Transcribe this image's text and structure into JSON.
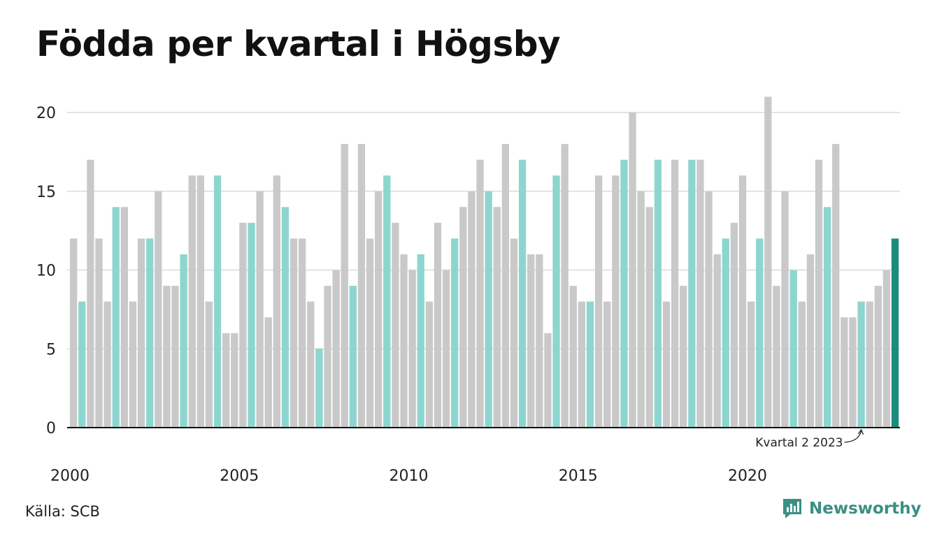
{
  "title": "Födda per kvartal i Högsby",
  "source": "Källa: SCB",
  "brand": {
    "name": "Newsworthy",
    "icon": "newsworthy-logo-icon"
  },
  "colors": {
    "grey": "#c9c9c9",
    "q2": "#8dd6cf",
    "highlight": "#1a8c7e",
    "grid": "#e2e2e2"
  },
  "chart_data": {
    "type": "bar",
    "title": "Födda per kvartal i Högsby",
    "xlabel": "",
    "ylabel": "",
    "ylim": [
      0,
      22
    ],
    "yticks": [
      0,
      5,
      10,
      15,
      20
    ],
    "xticks": [
      "2000",
      "2005",
      "2010",
      "2015",
      "2020"
    ],
    "start_year": 2000,
    "quarters_per_year": 4,
    "grid": true,
    "highlight_quarter": 2,
    "annotation": {
      "text": "Kvartal 2 2023",
      "year": 2023,
      "quarter": 2
    },
    "values": [
      12,
      8,
      17,
      12,
      8,
      14,
      14,
      8,
      12,
      12,
      15,
      9,
      9,
      11,
      16,
      16,
      8,
      16,
      6,
      6,
      13,
      13,
      15,
      7,
      16,
      14,
      12,
      12,
      8,
      5,
      9,
      10,
      18,
      9,
      18,
      12,
      15,
      16,
      13,
      11,
      10,
      11,
      8,
      13,
      10,
      12,
      14,
      15,
      17,
      15,
      14,
      18,
      12,
      17,
      11,
      11,
      6,
      16,
      18,
      9,
      8,
      8,
      16,
      8,
      16,
      17,
      20,
      15,
      14,
      17,
      8,
      17,
      9,
      17,
      17,
      15,
      11,
      12,
      13,
      16,
      8,
      12,
      21,
      9,
      15,
      10,
      8,
      11,
      17,
      14,
      18,
      7,
      7,
      8,
      8,
      9,
      10,
      12
    ]
  }
}
